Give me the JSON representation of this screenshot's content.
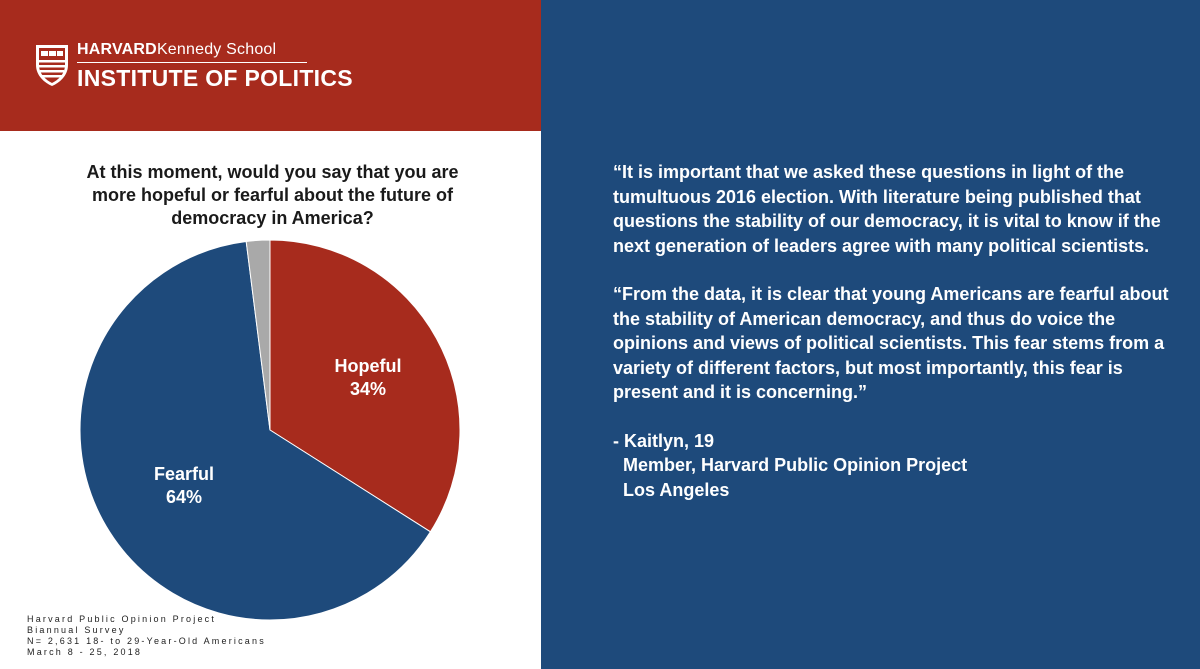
{
  "brand": {
    "line1_bold": "HARVARD",
    "line1_regular": "Kennedy School",
    "line2": "INSTITUTE OF POLITICS",
    "icon": "harvard-shield-icon",
    "header_color": "#a72b1d"
  },
  "question": "At this moment, would you say that you are more hopeful or fearful about the future of democracy in America?",
  "chart_data": {
    "type": "pie",
    "title": "At this moment, would you say that you are more hopeful or fearful about the future of democracy in America?",
    "slices": [
      {
        "label": "Hopeful",
        "value": 34,
        "value_label": "34%",
        "color": "#a72b1d"
      },
      {
        "label": "Fearful",
        "value": 64,
        "value_label": "64%",
        "color": "#1e4a7b"
      },
      {
        "label": "",
        "value": 2,
        "value_label": "",
        "color": "#a9a9a9"
      }
    ]
  },
  "footer": [
    "Harvard Public Opinion Project",
    "Biannual Survey",
    "N= 2,631 18- to 29-Year-Old Americans",
    "March 8 - 25, 2018"
  ],
  "quote": {
    "paragraph1": "“It is important that we asked these questions in light of the tumultuous 2016 election. With literature being published that questions the stability of our democracy, it is vital to know if the next generation of leaders agree with many political scientists.",
    "paragraph2": "“From the data, it is clear that young Americans are fearful about the stability of American democracy, and thus do voice the opinions and views of political scientists.  This fear stems from a variety of different factors, but most importantly, this fear is present and it is concerning.”",
    "signature": [
      "- Kaitlyn, 19",
      "  Member, Harvard Public Opinion Project",
      "  Los Angeles"
    ],
    "panel_color": "#1e4a7b"
  }
}
